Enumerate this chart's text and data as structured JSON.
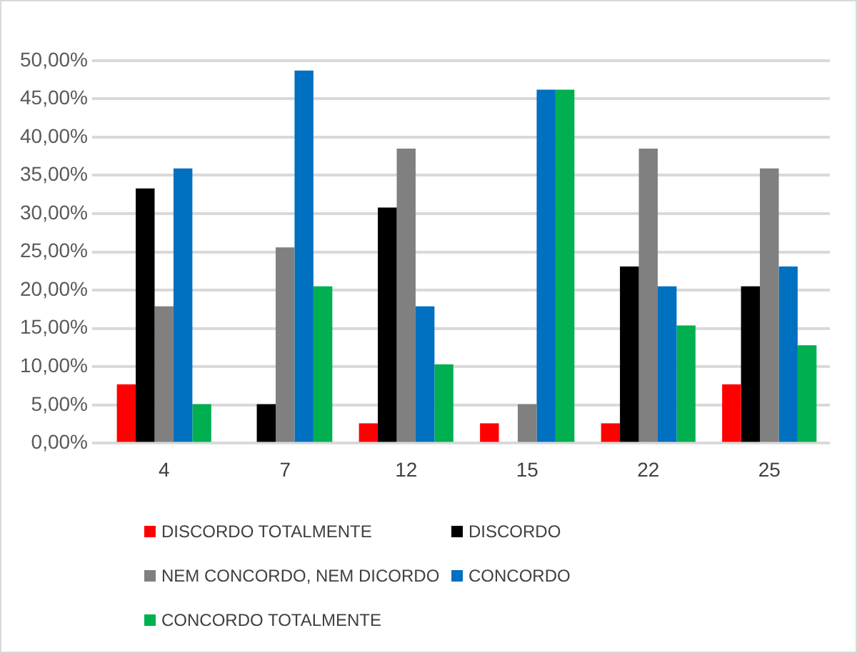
{
  "chart_data": {
    "type": "bar",
    "categories": [
      "4",
      "7",
      "12",
      "15",
      "22",
      "25"
    ],
    "series": [
      {
        "name": "DISCORDO TOTALMENTE",
        "color": "#ff0000",
        "values": [
          7.7,
          0,
          2.6,
          2.6,
          2.6,
          7.7
        ]
      },
      {
        "name": "DISCORDO",
        "color": "#000000",
        "values": [
          33.3,
          5.1,
          30.8,
          0,
          23.1,
          20.5
        ]
      },
      {
        "name": "NEM CONCORDO, NEM DICORDO",
        "color": "#808080",
        "values": [
          17.9,
          25.6,
          38.5,
          5.1,
          38.5,
          35.9
        ]
      },
      {
        "name": "CONCORDO",
        "color": "#0070c0",
        "values": [
          35.9,
          48.7,
          17.9,
          46.2,
          20.5,
          23.1
        ]
      },
      {
        "name": "CONCORDO TOTALMENTE",
        "color": "#00b050",
        "values": [
          5.1,
          20.5,
          10.3,
          46.2,
          15.4,
          12.8
        ]
      }
    ],
    "ylim": [
      0,
      50
    ],
    "yticks": [
      {
        "value": 0,
        "label": "0,00%"
      },
      {
        "value": 5,
        "label": "5,00%"
      },
      {
        "value": 10,
        "label": "10,00%"
      },
      {
        "value": 15,
        "label": "15,00%"
      },
      {
        "value": 20,
        "label": "20,00%"
      },
      {
        "value": 25,
        "label": "25,00%"
      },
      {
        "value": 30,
        "label": "30,00%"
      },
      {
        "value": 35,
        "label": "35,00%"
      },
      {
        "value": 40,
        "label": "40,00%"
      },
      {
        "value": 45,
        "label": "45,00%"
      },
      {
        "value": 50,
        "label": "50,00%"
      }
    ],
    "grid": "y",
    "legend": "bottom"
  }
}
